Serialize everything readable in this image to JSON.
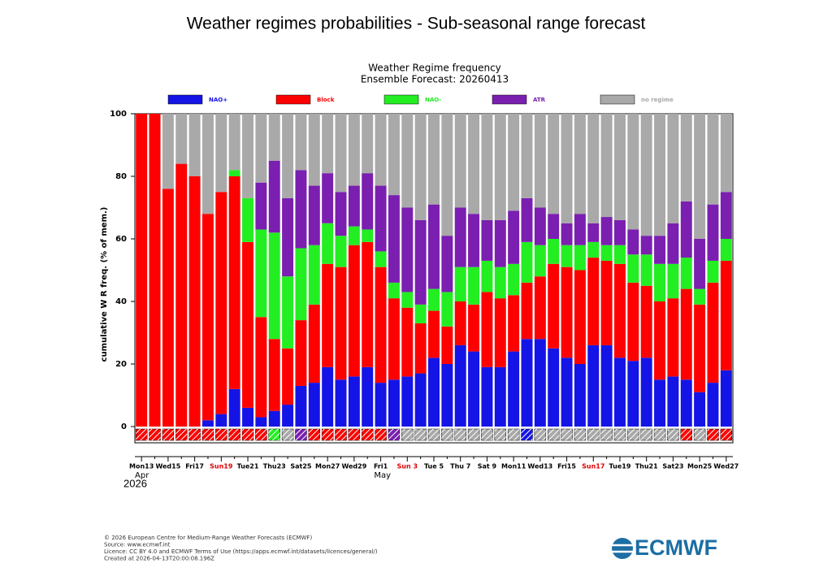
{
  "page_title": "Weather regimes probabilities - Sub-seasonal range forecast",
  "chart_data": {
    "type": "stacked_bar",
    "title": "Weather Regime frequency",
    "subtitle": "Ensemble Forecast: 20260413",
    "y_label": "cumulative W R freq. (% of mem.)",
    "year_label": "2026",
    "month_labels": [
      {
        "index": 0,
        "label": "Apr"
      },
      {
        "index": 18,
        "label": "May"
      }
    ],
    "highlight_indices": [
      6,
      20,
      34
    ],
    "highlight_color": "#e00000",
    "categories": [
      "Mon13",
      null,
      "Wed15",
      null,
      "Fri17",
      null,
      "Sun19",
      null,
      "Tue21",
      null,
      "Thu23",
      null,
      "Sat25",
      null,
      "Mon27",
      null,
      "Wed29",
      null,
      "Fri1",
      null,
      "Sun 3",
      null,
      "Tue 5",
      null,
      "Thu 7",
      null,
      "Sat 9",
      null,
      "Mon11",
      null,
      "Wed13",
      null,
      "Fri15",
      null,
      "Sun17",
      null,
      "Tue19",
      null,
      "Thu21",
      null,
      "Sat23",
      null,
      "Mon25",
      null,
      "Wed27"
    ],
    "series": [
      {
        "name": "NAO+",
        "color": "#1414e6",
        "values": [
          0,
          0,
          0,
          0,
          0,
          2,
          4,
          12,
          6,
          3,
          5,
          7,
          13,
          14,
          19,
          15,
          16,
          19,
          14,
          15,
          16,
          17,
          22,
          20,
          26,
          24,
          19,
          19,
          24,
          28,
          28,
          25,
          22,
          20,
          26,
          26,
          22,
          21,
          22,
          15,
          16,
          15,
          11,
          14,
          18
        ]
      },
      {
        "name": "Block",
        "color": "#ff0000",
        "values": [
          100,
          100,
          76,
          84,
          80,
          66,
          71,
          68,
          53,
          32,
          23,
          18,
          21,
          25,
          33,
          36,
          42,
          40,
          37,
          26,
          22,
          16,
          15,
          12,
          14,
          15,
          24,
          22,
          18,
          18,
          20,
          27,
          29,
          30,
          28,
          27,
          30,
          25,
          23,
          25,
          25,
          29,
          28,
          32,
          35
        ]
      },
      {
        "name": "NAO-",
        "color": "#22ee22",
        "values": [
          0,
          0,
          0,
          0,
          0,
          0,
          0,
          2,
          14,
          28,
          34,
          23,
          23,
          19,
          13,
          10,
          6,
          4,
          5,
          5,
          5,
          6,
          7,
          11,
          11,
          12,
          10,
          10,
          10,
          13,
          10,
          8,
          7,
          8,
          5,
          5,
          6,
          9,
          10,
          12,
          11,
          10,
          5,
          7,
          7
        ]
      },
      {
        "name": "ATR",
        "color": "#7a1fb0",
        "values": [
          0,
          0,
          0,
          0,
          0,
          0,
          0,
          0,
          0,
          15,
          23,
          25,
          25,
          19,
          16,
          14,
          13,
          18,
          21,
          28,
          27,
          27,
          27,
          18,
          19,
          17,
          13,
          15,
          17,
          14,
          12,
          8,
          7,
          10,
          6,
          9,
          8,
          8,
          6,
          9,
          13,
          18,
          16,
          18,
          15
        ]
      },
      {
        "name": "no regime",
        "color": "#a9a9a9",
        "values": [
          0,
          0,
          24,
          16,
          20,
          32,
          25,
          18,
          27,
          22,
          15,
          27,
          18,
          23,
          19,
          25,
          23,
          19,
          23,
          26,
          30,
          34,
          29,
          39,
          30,
          32,
          34,
          34,
          31,
          27,
          30,
          32,
          35,
          32,
          35,
          33,
          34,
          37,
          39,
          39,
          35,
          28,
          40,
          29,
          25
        ]
      }
    ],
    "ylim": [
      0,
      100
    ],
    "yticks": [
      0,
      20,
      40,
      60,
      80,
      100
    ]
  },
  "footer": [
    "© 2026 European Centre for Medium-Range Weather Forecasts (ECMWF)",
    "Source: www.ecmwf.int",
    "Licence: CC BY 4.0 and ECMWF Terms of Use (https://apps.ecmwf.int/datasets/licences/general/)",
    "Created at 2026-04-13T20:00:08.196Z"
  ],
  "logo": "ECMWF"
}
